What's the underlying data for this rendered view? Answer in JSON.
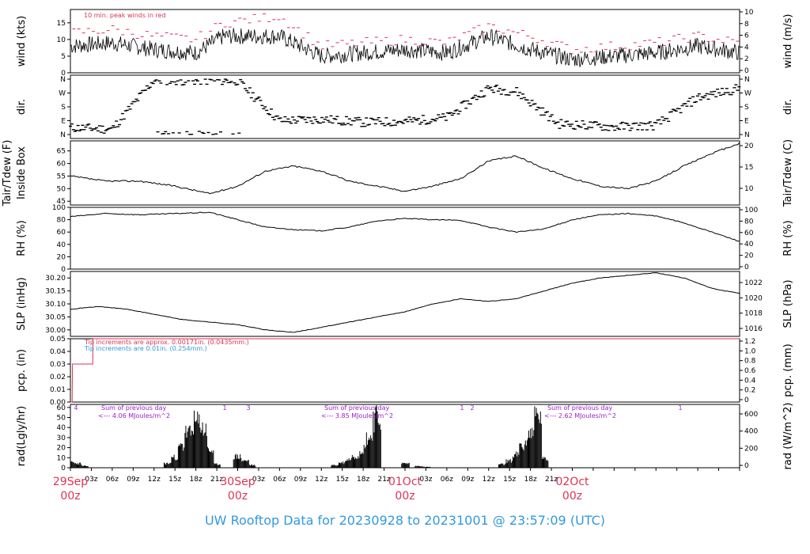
{
  "title": "UW Rooftop Data for 20230928  to  20231001 @ 23:57:09  (UTC)",
  "colors": {
    "title": "#3399dd",
    "date_labels": "#dd3355",
    "peak_wind": "#dd3355",
    "tip_note_red": "#dd3355",
    "tip_note_blue": "#3399dd",
    "sum_note": "#9922cc",
    "data_line": "#000000"
  },
  "chart_data": [
    {
      "type": "line",
      "id": "wind",
      "ylabel_left": "wind (kts)",
      "ylabel_right": "wind (m/s)",
      "ylim": [
        0,
        19
      ],
      "yticks_left": [
        "0",
        "5",
        "10",
        "15"
      ],
      "yticks_right": [
        "0",
        "2",
        "4",
        "6",
        "8",
        "10"
      ],
      "annotation": "10 min. peak winds in red",
      "x_hours": [
        0,
        6,
        12,
        18,
        22,
        30,
        36,
        42,
        48,
        54,
        60,
        66,
        72,
        78,
        84,
        90,
        96
      ],
      "series": [
        {
          "values": [
            8,
            9,
            7,
            6,
            11,
            11,
            5,
            6,
            7,
            6,
            11,
            7,
            4,
            5,
            6,
            8,
            6
          ]
        },
        {
          "values": [
            12,
            13,
            11,
            10,
            15,
            17,
            8,
            9,
            10,
            9,
            14,
            11,
            7,
            8,
            9,
            11,
            9
          ]
        }
      ]
    },
    {
      "type": "scatter",
      "id": "dir",
      "ylabel_left": "dir.",
      "ylabel_right": "dir.",
      "yticks_left": [
        "N",
        "W",
        "S",
        "E",
        "N"
      ],
      "yticks_right": [
        "N",
        "W",
        "S",
        "E",
        "N"
      ],
      "ylim": [
        0,
        360
      ],
      "x_hours": [
        0,
        6,
        12,
        16,
        20,
        24,
        30,
        36,
        42,
        48,
        54,
        60,
        64,
        70,
        78,
        84,
        90,
        96
      ],
      "series": [
        {
          "values": [
            45,
            35,
            355,
            350,
            352,
            350,
            90,
            100,
            80,
            85,
            110,
            300,
            280,
            70,
            50,
            60,
            240,
            300
          ]
        }
      ]
    },
    {
      "type": "line",
      "id": "temp",
      "ylabel_left": "Tair/Tdew (F)",
      "ylabel_left2": "Inside Box",
      "ylabel_right": "Tair/Tdew (C)",
      "ylim": [
        43.5,
        69
      ],
      "yticks_left": [
        "45",
        "50",
        "55",
        "60",
        "65"
      ],
      "yticks_right": [
        "10",
        "15",
        "20"
      ],
      "x_hours": [
        0,
        5,
        10,
        15,
        20,
        24,
        28,
        32,
        36,
        40,
        44,
        48,
        52,
        56,
        60,
        64,
        68,
        72,
        76,
        80,
        84,
        88,
        92,
        96
      ],
      "series": [
        {
          "values": [
            55,
            53,
            53,
            51,
            48,
            51,
            57,
            59,
            57,
            53,
            51,
            49,
            51,
            54,
            61,
            63,
            58,
            54,
            51,
            50,
            53,
            59,
            64,
            68
          ]
        }
      ]
    },
    {
      "type": "line",
      "id": "rh",
      "ylabel_left": "RH (%)",
      "ylabel_right": "RH (%)",
      "ylim": [
        0,
        100
      ],
      "yticks_left": [
        "0",
        "20",
        "40",
        "60",
        "80",
        "100"
      ],
      "yticks_right": [
        "0",
        "20",
        "40",
        "60",
        "80",
        "100"
      ],
      "x_hours": [
        0,
        5,
        10,
        15,
        20,
        24,
        28,
        32,
        36,
        40,
        44,
        48,
        52,
        56,
        60,
        64,
        68,
        72,
        76,
        80,
        84,
        88,
        92,
        96
      ],
      "series": [
        {
          "values": [
            85,
            90,
            88,
            90,
            92,
            80,
            68,
            64,
            62,
            68,
            78,
            82,
            80,
            79,
            68,
            60,
            65,
            80,
            88,
            90,
            86,
            75,
            60,
            45
          ]
        }
      ]
    },
    {
      "type": "line",
      "id": "slp",
      "ylabel_left": "SLP (inHg)",
      "ylabel_right": "SLP (hPa)",
      "ylim": [
        29.975,
        30.225
      ],
      "yticks_left": [
        "30.00",
        "30.05",
        "30.10",
        "30.15",
        "30.20"
      ],
      "yticks_right": [
        "1016",
        "1018",
        "1020",
        "1022"
      ],
      "x_hours": [
        0,
        4,
        8,
        12,
        16,
        20,
        24,
        28,
        32,
        36,
        40,
        44,
        48,
        52,
        56,
        60,
        64,
        68,
        72,
        76,
        80,
        84,
        88,
        92,
        96
      ],
      "series": [
        {
          "values": [
            30.08,
            30.09,
            30.08,
            30.06,
            30.04,
            30.03,
            30.02,
            30.0,
            29.99,
            30.01,
            30.03,
            30.05,
            30.07,
            30.1,
            30.12,
            30.11,
            30.12,
            30.15,
            30.18,
            30.2,
            30.21,
            30.22,
            30.2,
            30.16,
            30.14
          ]
        }
      ]
    },
    {
      "type": "line",
      "id": "pcp",
      "ylabel_left": "pcp. (in)",
      "ylabel_right": "pcp. (mm)",
      "ylim": [
        0,
        0.05
      ],
      "yticks_left": [
        "0.00",
        "0.01",
        "0.02",
        "0.03",
        "0.04",
        "0.05"
      ],
      "yticks_right": [
        "0",
        "0.2",
        "0.4",
        "0.6",
        "0.8",
        "1.0",
        "1.2"
      ],
      "note_red": "Tip increments are approx. 0.00171in. (0.0435mm.)",
      "note_blue": "Tip increments are 0.01in. (0.254mm.)",
      "x_hours": [
        0,
        0.3,
        0.6,
        3,
        3.2,
        96
      ],
      "series": [
        {
          "values": [
            0,
            0.03,
            0.03,
            0.03,
            0.05,
            0.05
          ]
        }
      ]
    },
    {
      "type": "bar",
      "id": "rad",
      "ylabel_left": "rad(Lgly/hr)",
      "ylabel_right": "rad (W/m^2)",
      "ylim": [
        0,
        63
      ],
      "yticks_left": [
        "0",
        "10",
        "20",
        "30",
        "40",
        "50",
        "60"
      ],
      "yticks_right": [
        "0",
        "200",
        "400",
        "600"
      ],
      "day_sums": [
        {
          "line1": "Sum of previous day",
          "line2": "<--- 4.06 MJoules/m^2"
        },
        {
          "line1": "Sum of previous day",
          "line2": "<--- 3.85 MJoules/m^2"
        },
        {
          "line1": "Sum of previous day",
          "line2": "<--- 2.62 MJoules/m^2"
        }
      ],
      "markers": [
        "4",
        "1",
        "3",
        "1",
        "2",
        "1"
      ],
      "x_hours": [
        0,
        1,
        2,
        14,
        15,
        16,
        17,
        18,
        19,
        20,
        21,
        24,
        25,
        26,
        38,
        39,
        40,
        41,
        42,
        43,
        44,
        48,
        50,
        51,
        62,
        63,
        64,
        65,
        66,
        67,
        68
      ],
      "series": [
        {
          "values": [
            6,
            5,
            2,
            5,
            12,
            25,
            40,
            52,
            45,
            20,
            4,
            13,
            8,
            3,
            3,
            6,
            10,
            14,
            22,
            35,
            58,
            5,
            2,
            1,
            4,
            8,
            15,
            25,
            40,
            60,
            10
          ]
        }
      ]
    }
  ],
  "x_axis": {
    "tick_labels": [
      "03z",
      "06z",
      "09z",
      "12z",
      "15z",
      "18z",
      "21z",
      "03z",
      "06z",
      "09z",
      "12z",
      "15z",
      "18z",
      "21z",
      "03z",
      "06z",
      "09z",
      "12z",
      "15z",
      "18z",
      "21z"
    ],
    "date_labels": [
      {
        "date": "29Sep",
        "hour": "00z"
      },
      {
        "date": "30Sep",
        "hour": "00z"
      },
      {
        "date": "01Oct",
        "hour": "00z"
      },
      {
        "date": "02Oct",
        "hour": "00z"
      }
    ]
  }
}
